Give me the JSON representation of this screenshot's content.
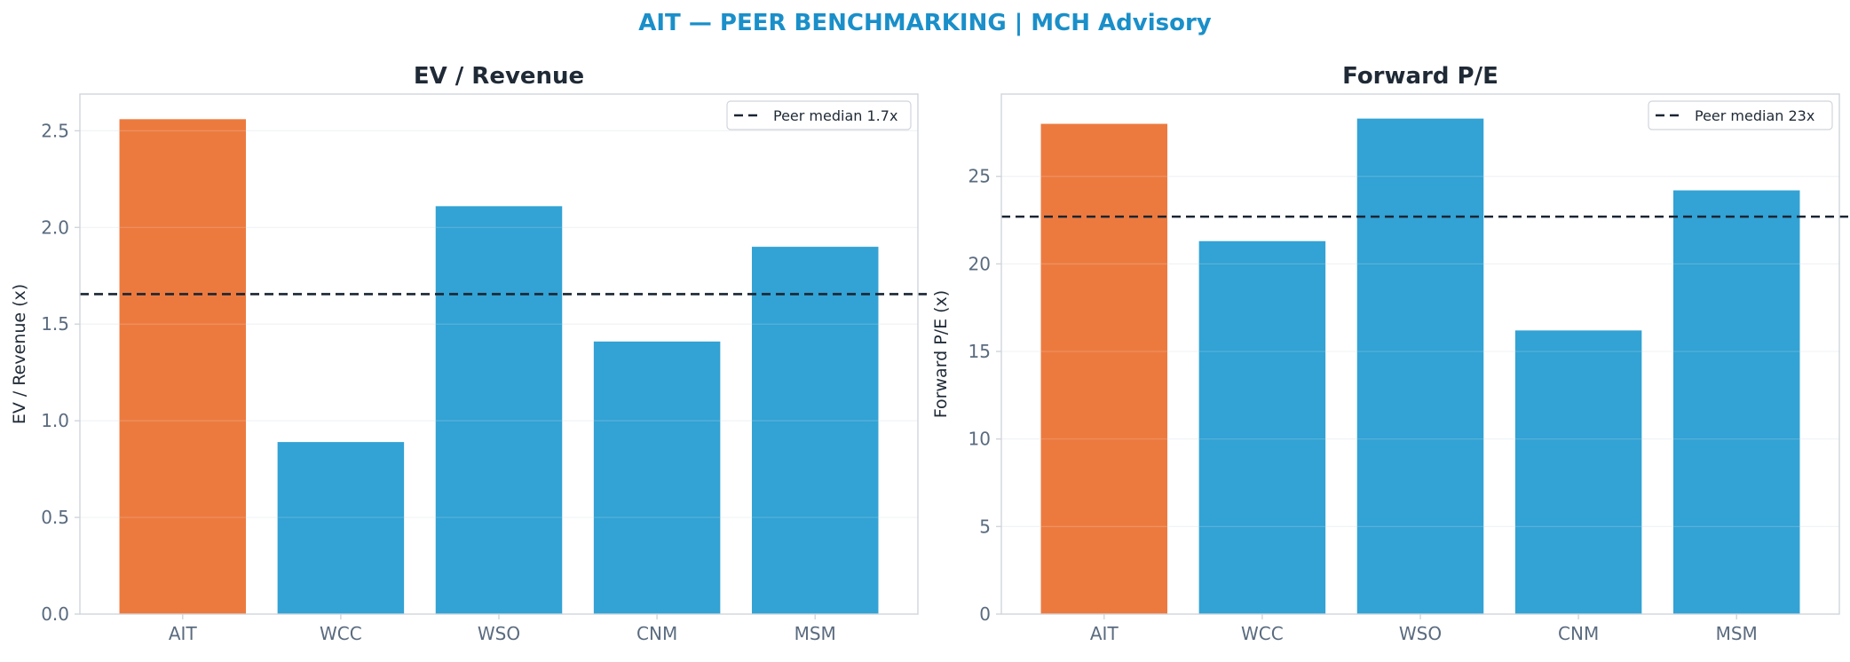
{
  "figure": {
    "title": "AIT — PEER BENCHMARKING | MCH Advisory",
    "title_color": "#1a8fc9"
  },
  "colors": {
    "highlight": "#ec7a3f",
    "peer": "#33a2d4",
    "median_line": "#1a2533",
    "axis_text": "#5a6b7f",
    "title_text": "#1f2a36",
    "grid": "#eef1f4",
    "spine": "#d0d5db"
  },
  "chart_data": [
    {
      "type": "bar",
      "title": "EV / Revenue",
      "xlabel": "",
      "ylabel": "EV / Revenue (x)",
      "categories": [
        "AIT",
        "WCC",
        "WSO",
        "CNM",
        "MSM"
      ],
      "values": [
        2.56,
        0.89,
        2.11,
        1.41,
        1.9
      ],
      "highlight": "AIT",
      "ylim": [
        0,
        2.69
      ],
      "yticks": [
        0.0,
        0.5,
        1.0,
        1.5,
        2.0,
        2.5
      ],
      "ytick_labels": [
        "0.0",
        "0.5",
        "1.0",
        "1.5",
        "2.0",
        "2.5"
      ],
      "grid": true,
      "reference_line": {
        "value": 1.655,
        "label": "Peer median 1.7x",
        "style": "dashed"
      },
      "legend_position": "top-right"
    },
    {
      "type": "bar",
      "title": "Forward P/E",
      "xlabel": "",
      "ylabel": "Forward P/E (x)",
      "categories": [
        "AIT",
        "WCC",
        "WSO",
        "CNM",
        "MSM"
      ],
      "values": [
        28.0,
        21.3,
        28.3,
        16.2,
        24.2
      ],
      "highlight": "AIT",
      "ylim": [
        0,
        29.7
      ],
      "yticks": [
        0,
        5,
        10,
        15,
        20,
        25
      ],
      "ytick_labels": [
        "0",
        "5",
        "10",
        "15",
        "20",
        "25"
      ],
      "grid": true,
      "reference_line": {
        "value": 22.7,
        "label": "Peer median 23x",
        "style": "dashed"
      },
      "legend_position": "top-right"
    }
  ]
}
